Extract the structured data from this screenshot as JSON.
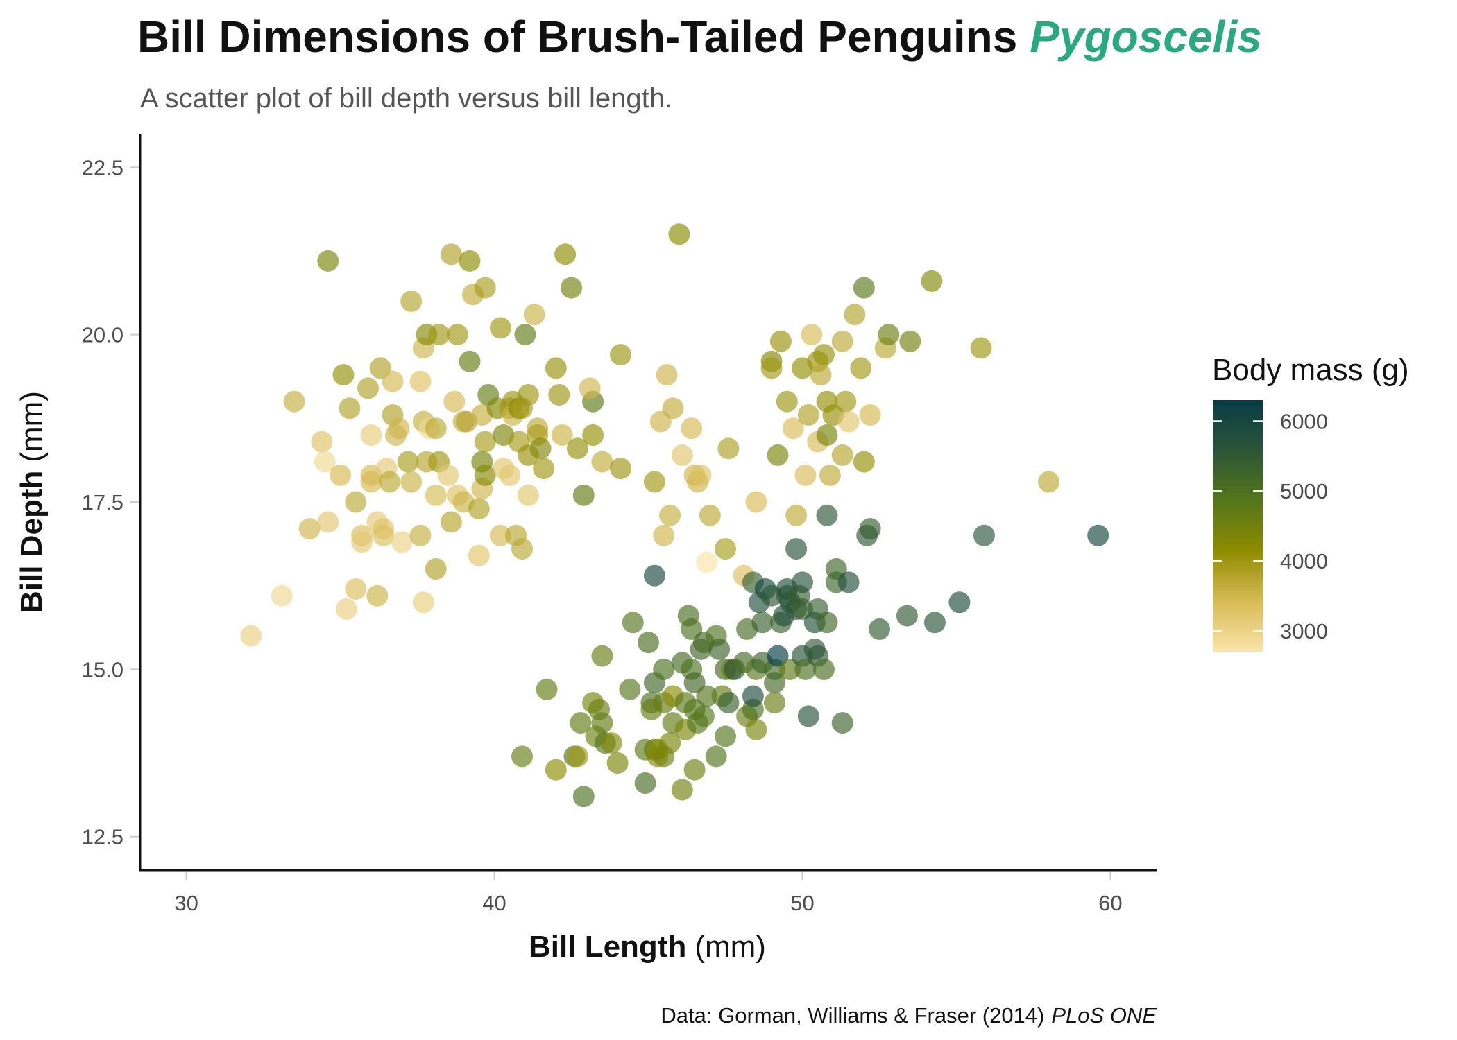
{
  "chart_data": {
    "type": "scatter",
    "title": "Bill Dimensions of Brush-Tailed Penguins",
    "title_highlight": "Pygoscelis",
    "subtitle": "A scatter plot of bill depth versus bill length.",
    "xlabel": "Bill Length",
    "xlabel_unit": "(mm)",
    "ylabel": "Bill Depth",
    "ylabel_unit": "(mm)",
    "xlim": [
      28.5,
      61.5
    ],
    "ylim": [
      12.0,
      23.0
    ],
    "xticks": [
      30,
      40,
      50,
      60
    ],
    "xtick_labels": [
      "30",
      "40",
      "50",
      "60"
    ],
    "yticks": [
      12.5,
      15.0,
      17.5,
      20.0,
      22.5
    ],
    "ytick_labels": [
      "12.5",
      "15.0",
      "17.5",
      "20.0",
      "22.5"
    ],
    "grid": false,
    "legend": {
      "title": "Body mass (g)",
      "placement": "right",
      "type": "colorbar",
      "range": [
        2700,
        6300
      ],
      "ticks": [
        3000,
        4000,
        5000,
        6000
      ],
      "tick_labels": [
        "3000",
        "4000",
        "5000",
        "6000"
      ],
      "colors": [
        "#f9e4a8",
        "#d8bb55",
        "#8f8c00",
        "#54761a",
        "#2c5536",
        "#063c47"
      ]
    },
    "point_opacity": 0.65,
    "caption": "Data: Gorman, Williams & Fraser (2014)",
    "caption_italic": "PLoS ONE",
    "points": [
      [
        32.1,
        15.5,
        3050
      ],
      [
        33.1,
        16.1,
        2900
      ],
      [
        33.5,
        19.0,
        3600
      ],
      [
        34.0,
        17.1,
        3500
      ],
      [
        34.4,
        18.4,
        3300
      ],
      [
        34.5,
        18.1,
        2900
      ],
      [
        34.6,
        21.1,
        4400
      ],
      [
        34.6,
        17.2,
        3200
      ],
      [
        35.0,
        17.9,
        3450
      ],
      [
        35.1,
        19.4,
        4100
      ],
      [
        35.2,
        15.9,
        3050
      ],
      [
        35.3,
        18.9,
        3800
      ],
      [
        35.5,
        17.5,
        3700
      ],
      [
        35.5,
        16.2,
        3350
      ],
      [
        35.7,
        17.0,
        3350
      ],
      [
        35.7,
        16.9,
        3150
      ],
      [
        35.9,
        19.2,
        3800
      ],
      [
        36.0,
        17.9,
        3450
      ],
      [
        36.0,
        18.5,
        3100
      ],
      [
        36.0,
        17.8,
        3450
      ],
      [
        36.2,
        17.2,
        3150
      ],
      [
        36.2,
        16.1,
        3550
      ],
      [
        36.3,
        19.5,
        3800
      ],
      [
        36.4,
        17.1,
        3250
      ],
      [
        36.4,
        17.0,
        3325
      ],
      [
        36.5,
        18.0,
        3150
      ],
      [
        36.6,
        17.8,
        3700
      ],
      [
        36.7,
        19.3,
        3450
      ],
      [
        36.7,
        18.8,
        3800
      ],
      [
        36.8,
        18.5,
        3500
      ],
      [
        36.9,
        18.6,
        3500
      ],
      [
        37.0,
        16.9,
        3000
      ],
      [
        37.2,
        18.1,
        3900
      ],
      [
        37.3,
        20.5,
        3775
      ],
      [
        37.3,
        17.8,
        3550
      ],
      [
        37.6,
        19.3,
        3300
      ],
      [
        37.6,
        17.0,
        3600
      ],
      [
        37.7,
        19.8,
        3500
      ],
      [
        37.7,
        18.7,
        3600
      ],
      [
        37.7,
        16.0,
        3075
      ],
      [
        37.8,
        18.1,
        3750
      ],
      [
        37.8,
        20.0,
        4250
      ],
      [
        37.9,
        18.6,
        2925
      ],
      [
        38.1,
        18.6,
        3700
      ],
      [
        38.1,
        17.6,
        3425
      ],
      [
        38.1,
        16.5,
        3800
      ],
      [
        38.2,
        18.1,
        3950
      ],
      [
        38.2,
        20.0,
        3950
      ],
      [
        38.5,
        17.9,
        3200
      ],
      [
        38.6,
        21.2,
        3800
      ],
      [
        38.6,
        17.2,
        3750
      ],
      [
        38.7,
        19.0,
        3450
      ],
      [
        38.8,
        17.6,
        3275
      ],
      [
        38.8,
        20.0,
        3950
      ],
      [
        39.0,
        17.5,
        3550
      ],
      [
        39.0,
        18.7,
        3650
      ],
      [
        39.1,
        18.7,
        3750
      ],
      [
        39.2,
        19.6,
        4675
      ],
      [
        39.2,
        21.1,
        4150
      ],
      [
        39.3,
        20.6,
        3650
      ],
      [
        39.5,
        17.4,
        3800
      ],
      [
        39.5,
        16.7,
        3250
      ],
      [
        39.6,
        18.8,
        3600
      ],
      [
        39.6,
        17.7,
        3500
      ],
      [
        39.6,
        18.1,
        4450
      ],
      [
        39.7,
        18.4,
        3900
      ],
      [
        39.7,
        17.9,
        4250
      ],
      [
        39.8,
        19.1,
        4650
      ],
      [
        39.7,
        20.7,
        3900
      ],
      [
        40.1,
        18.9,
        4300
      ],
      [
        40.2,
        17.0,
        3450
      ],
      [
        40.2,
        20.1,
        3975
      ],
      [
        40.3,
        18.0,
        3250
      ],
      [
        40.3,
        18.5,
        4350
      ],
      [
        40.5,
        17.9,
        3200
      ],
      [
        40.5,
        18.9,
        3950
      ],
      [
        40.6,
        19.0,
        4000
      ],
      [
        40.6,
        18.8,
        3550
      ],
      [
        40.7,
        17.0,
        3725
      ],
      [
        40.8,
        18.4,
        3900
      ],
      [
        40.8,
        18.9,
        4300
      ],
      [
        40.9,
        16.8,
        3700
      ],
      [
        40.9,
        18.9,
        3900
      ],
      [
        41.0,
        20.0,
        4725
      ],
      [
        41.1,
        17.6,
        3200
      ],
      [
        41.1,
        18.2,
        4050
      ],
      [
        41.1,
        19.1,
        4000
      ],
      [
        41.3,
        20.3,
        3550
      ],
      [
        41.4,
        18.6,
        3700
      ],
      [
        41.4,
        18.5,
        3875
      ],
      [
        41.5,
        18.3,
        4300
      ],
      [
        41.6,
        18.0,
        3950
      ],
      [
        42.0,
        19.5,
        4050
      ],
      [
        42.1,
        19.1,
        4000
      ],
      [
        42.2,
        18.5,
        3550
      ],
      [
        42.3,
        21.2,
        4150
      ],
      [
        42.5,
        20.7,
        4500
      ],
      [
        42.7,
        18.3,
        4075
      ],
      [
        42.9,
        17.6,
        4700
      ],
      [
        43.2,
        18.5,
        4100
      ],
      [
        43.2,
        19.0,
        4775
      ],
      [
        43.1,
        19.2,
        3500
      ],
      [
        43.5,
        18.1,
        3650
      ],
      [
        44.1,
        19.7,
        4000
      ],
      [
        44.1,
        18.0,
        4000
      ],
      [
        45.2,
        17.8,
        3950
      ],
      [
        45.4,
        18.7,
        3525
      ],
      [
        45.5,
        17.0,
        3500
      ],
      [
        45.6,
        19.4,
        3525
      ],
      [
        45.7,
        17.3,
        3600
      ],
      [
        45.8,
        18.9,
        3650
      ],
      [
        46.0,
        21.5,
        4200
      ],
      [
        46.1,
        18.2,
        3250
      ],
      [
        46.4,
        18.6,
        3450
      ],
      [
        46.5,
        17.9,
        3500
      ],
      [
        46.6,
        17.8,
        3500
      ],
      [
        46.7,
        17.9,
        3300
      ],
      [
        46.9,
        16.6,
        2700
      ],
      [
        47.0,
        17.3,
        3700
      ],
      [
        47.5,
        16.8,
        3900
      ],
      [
        47.6,
        18.3,
        3850
      ],
      [
        48.1,
        16.4,
        3325
      ],
      [
        48.5,
        17.5,
        3400
      ],
      [
        49.0,
        19.6,
        4300
      ],
      [
        49.0,
        19.5,
        3950
      ],
      [
        49.2,
        18.2,
        4400
      ],
      [
        49.3,
        19.9,
        4050
      ],
      [
        49.5,
        19.0,
        4000
      ],
      [
        49.7,
        18.6,
        3400
      ],
      [
        49.8,
        17.3,
        3675
      ],
      [
        50.0,
        19.5,
        4100
      ],
      [
        50.1,
        17.9,
        3400
      ],
      [
        50.2,
        18.8,
        3800
      ],
      [
        50.3,
        20.0,
        3400
      ],
      [
        50.5,
        19.6,
        4050
      ],
      [
        50.5,
        18.4,
        3400
      ],
      [
        50.6,
        19.4,
        3700
      ],
      [
        50.7,
        19.7,
        4050
      ],
      [
        50.8,
        19.0,
        4100
      ],
      [
        50.8,
        18.5,
        4450
      ],
      [
        50.9,
        17.9,
        3675
      ],
      [
        51.0,
        18.8,
        4100
      ],
      [
        51.3,
        19.9,
        3700
      ],
      [
        51.3,
        18.2,
        3750
      ],
      [
        51.4,
        19.0,
        3950
      ],
      [
        51.5,
        18.7,
        3250
      ],
      [
        51.7,
        20.3,
        3775
      ],
      [
        51.9,
        19.5,
        3950
      ],
      [
        52.0,
        18.1,
        4100
      ],
      [
        52.0,
        20.7,
        4800
      ],
      [
        52.2,
        18.8,
        3450
      ],
      [
        52.7,
        19.8,
        3725
      ],
      [
        52.8,
        20.0,
        4550
      ],
      [
        53.5,
        19.9,
        4500
      ],
      [
        54.2,
        20.8,
        4300
      ],
      [
        55.8,
        19.8,
        4000
      ],
      [
        58.0,
        17.8,
        3700
      ],
      [
        40.9,
        13.7,
        4650
      ],
      [
        41.7,
        14.7,
        4700
      ],
      [
        42.0,
        13.5,
        4150
      ],
      [
        42.6,
        13.7,
        4950
      ],
      [
        42.7,
        13.7,
        3950
      ],
      [
        42.8,
        14.2,
        4700
      ],
      [
        42.9,
        13.1,
        5000
      ],
      [
        43.2,
        14.5,
        4450
      ],
      [
        43.3,
        14.0,
        4575
      ],
      [
        43.4,
        14.4,
        4600
      ],
      [
        43.5,
        14.2,
        4700
      ],
      [
        43.5,
        15.2,
        4650
      ],
      [
        43.6,
        13.9,
        4900
      ],
      [
        43.8,
        13.9,
        4300
      ],
      [
        44.0,
        13.6,
        4350
      ],
      [
        44.4,
        14.7,
        4850
      ],
      [
        44.5,
        15.7,
        4875
      ],
      [
        44.9,
        13.3,
        5100
      ],
      [
        44.9,
        13.8,
        4750
      ],
      [
        45.0,
        15.4,
        5050
      ],
      [
        45.1,
        14.5,
        5000
      ],
      [
        45.2,
        14.8,
        5200
      ],
      [
        45.2,
        13.8,
        4750
      ],
      [
        45.3,
        13.8,
        4200
      ],
      [
        45.5,
        14.5,
        4700
      ],
      [
        45.5,
        15.0,
        5000
      ],
      [
        45.5,
        13.7,
        4650
      ],
      [
        45.7,
        13.9,
        4400
      ],
      [
        45.8,
        14.2,
        4700
      ],
      [
        45.8,
        14.6,
        4200
      ],
      [
        45.1,
        14.4,
        4650
      ],
      [
        45.2,
        16.4,
        5950
      ],
      [
        45.3,
        13.7,
        4300
      ],
      [
        46.1,
        13.2,
        4500
      ],
      [
        46.1,
        15.1,
        5100
      ],
      [
        46.2,
        14.1,
        4375
      ],
      [
        46.2,
        14.5,
        4800
      ],
      [
        46.3,
        15.8,
        5050
      ],
      [
        46.4,
        15.0,
        4975
      ],
      [
        46.4,
        15.6,
        5000
      ],
      [
        46.5,
        14.8,
        5200
      ],
      [
        46.5,
        13.5,
        4550
      ],
      [
        46.5,
        14.4,
        4900
      ],
      [
        46.6,
        14.2,
        4850
      ],
      [
        46.7,
        15.3,
        5200
      ],
      [
        46.8,
        14.3,
        4850
      ],
      [
        46.8,
        15.4,
        5150
      ],
      [
        46.9,
        14.6,
        4875
      ],
      [
        47.2,
        15.5,
        4975
      ],
      [
        47.2,
        13.7,
        4925
      ],
      [
        47.3,
        15.3,
        5250
      ],
      [
        47.4,
        14.6,
        4725
      ],
      [
        47.5,
        14.0,
        4875
      ],
      [
        47.5,
        15.0,
        5200
      ],
      [
        47.6,
        14.5,
        5400
      ],
      [
        47.7,
        15.0,
        4500
      ],
      [
        47.8,
        15.0,
        5650
      ],
      [
        48.1,
        15.1,
        5100
      ],
      [
        48.2,
        14.3,
        4600
      ],
      [
        48.2,
        15.6,
        5100
      ],
      [
        48.4,
        14.4,
        5000
      ],
      [
        48.4,
        16.3,
        5400
      ],
      [
        48.4,
        14.6,
        5850
      ],
      [
        48.5,
        14.1,
        4400
      ],
      [
        48.5,
        15.0,
        4850
      ],
      [
        48.6,
        16.0,
        5800
      ],
      [
        48.7,
        15.1,
        5300
      ],
      [
        48.7,
        15.7,
        5350
      ],
      [
        48.8,
        16.2,
        6000
      ],
      [
        49.0,
        16.1,
        5550
      ],
      [
        49.1,
        14.8,
        5150
      ],
      [
        49.1,
        14.5,
        4625
      ],
      [
        49.1,
        15.0,
        5150
      ],
      [
        49.2,
        15.2,
        6300
      ],
      [
        49.3,
        15.7,
        5300
      ],
      [
        49.4,
        15.8,
        5800
      ],
      [
        49.5,
        16.1,
        5500
      ],
      [
        49.5,
        16.2,
        5800
      ],
      [
        49.6,
        15.0,
        4750
      ],
      [
        49.6,
        16.0,
        5700
      ],
      [
        49.8,
        15.9,
        5700
      ],
      [
        49.8,
        16.8,
        5700
      ],
      [
        49.9,
        16.1,
        5400
      ],
      [
        50.0,
        15.2,
        5700
      ],
      [
        50.0,
        16.3,
        5700
      ],
      [
        50.0,
        15.9,
        5350
      ],
      [
        50.1,
        15.0,
        5000
      ],
      [
        50.2,
        14.3,
        5700
      ],
      [
        50.4,
        15.3,
        5550
      ],
      [
        50.4,
        15.7,
        5750
      ],
      [
        50.5,
        15.9,
        5400
      ],
      [
        50.5,
        15.2,
        5550
      ],
      [
        50.7,
        15.0,
        5050
      ],
      [
        50.8,
        15.7,
        5200
      ],
      [
        50.8,
        17.3,
        5600
      ],
      [
        51.1,
        16.3,
        5250
      ],
      [
        51.1,
        16.5,
        5250
      ],
      [
        51.3,
        14.2,
        5300
      ],
      [
        51.5,
        16.3,
        5750
      ],
      [
        52.1,
        17.0,
        5550
      ],
      [
        52.2,
        17.1,
        5400
      ],
      [
        52.5,
        15.6,
        5450
      ],
      [
        53.4,
        15.8,
        5500
      ],
      [
        54.3,
        15.7,
        5650
      ],
      [
        55.1,
        16.0,
        5850
      ],
      [
        55.9,
        17.0,
        5600
      ],
      [
        59.6,
        17.0,
        6050
      ]
    ]
  }
}
